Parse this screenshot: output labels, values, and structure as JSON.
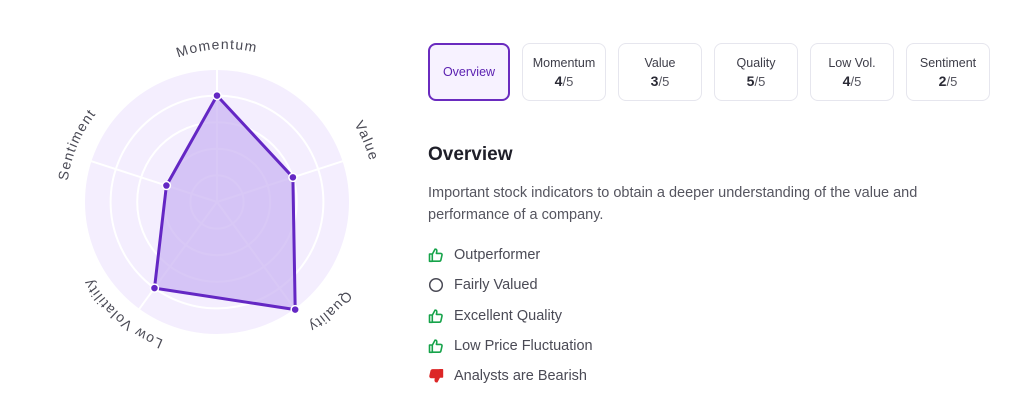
{
  "radar": {
    "axes": [
      {
        "label": "Momentum",
        "score": 4
      },
      {
        "label": "Value",
        "score": 3
      },
      {
        "label": "Quality",
        "score": 5
      },
      {
        "label": "Low Volatility",
        "score": 4
      },
      {
        "label": "Sentiment",
        "score": 2
      }
    ],
    "max_score": 5,
    "colors": {
      "fill": "#cbb6f3",
      "stroke": "#6427c4",
      "bg": "#f4eefe",
      "grid": "#ffffff"
    }
  },
  "tabs": [
    {
      "label": "Overview",
      "active": true
    },
    {
      "label": "Momentum",
      "score": "4",
      "out_of": "/5"
    },
    {
      "label": "Value",
      "score": "3",
      "out_of": "/5"
    },
    {
      "label": "Quality",
      "score": "5",
      "out_of": "/5"
    },
    {
      "label": "Low Vol.",
      "score": "4",
      "out_of": "/5"
    },
    {
      "label": "Sentiment",
      "score": "2",
      "out_of": "/5"
    }
  ],
  "overview": {
    "title": "Overview",
    "description": "Important stock indicators to obtain a deeper understanding of the value and performance of a company.",
    "items": [
      {
        "text": "Outperformer",
        "icon": "thumbs-up-icon",
        "color": "#16a34a"
      },
      {
        "text": "Fairly Valued",
        "icon": "circle-icon",
        "color": "#4a4a55"
      },
      {
        "text": "Excellent Quality",
        "icon": "thumbs-up-icon",
        "color": "#16a34a"
      },
      {
        "text": "Low Price Fluctuation",
        "icon": "thumbs-up-icon",
        "color": "#16a34a"
      },
      {
        "text": "Analysts are Bearish",
        "icon": "thumbs-down-icon",
        "color": "#dc2626"
      }
    ]
  }
}
